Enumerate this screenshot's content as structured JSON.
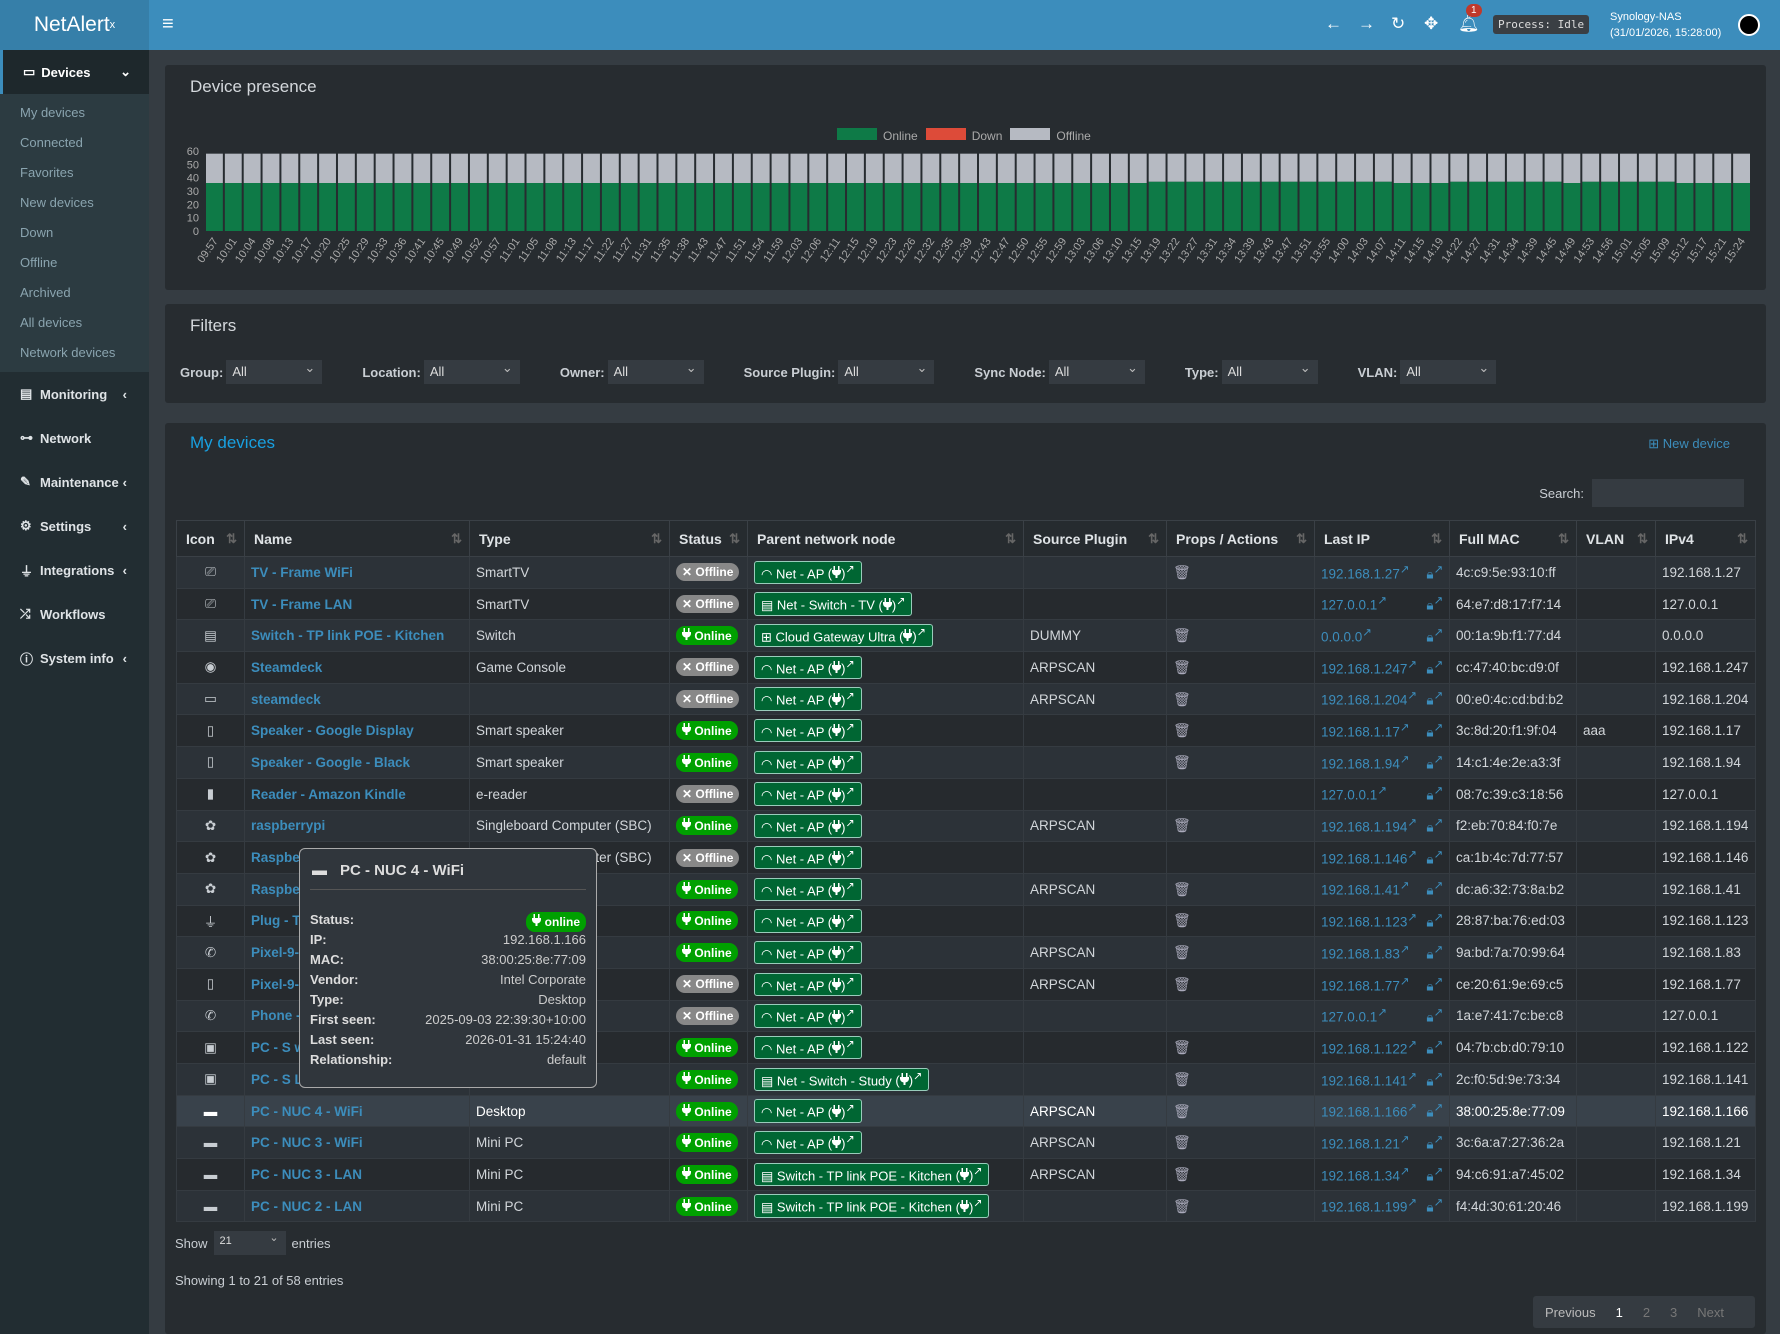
{
  "header": {
    "logo": "NetAlert",
    "logo_sup": "x",
    "notif_count": "1",
    "process": "Process: Idle",
    "host": "Synology-NAS",
    "datetime": "(31/01/2026, 15:28:00)"
  },
  "sidebar": {
    "devices": "Devices",
    "sub": [
      "My devices",
      "Connected",
      "Favorites",
      "New devices",
      "Down",
      "Offline",
      "Archived",
      "All devices",
      "Network devices"
    ],
    "items": [
      {
        "label": "Monitoring",
        "icon": "chart-icon",
        "chev": true
      },
      {
        "label": "Network",
        "icon": "sitemap-icon",
        "chev": false
      },
      {
        "label": "Maintenance",
        "icon": "wrench-icon",
        "chev": true
      },
      {
        "label": "Settings",
        "icon": "gear-icon",
        "chev": true
      },
      {
        "label": "Integrations",
        "icon": "plug-icon",
        "chev": true
      },
      {
        "label": "Workflows",
        "icon": "shuffle-icon",
        "chev": false
      },
      {
        "label": "System info",
        "icon": "info-icon",
        "chev": true
      }
    ]
  },
  "presence": {
    "title": "Device presence"
  },
  "chart_data": {
    "type": "bar",
    "stacked": true,
    "ylim": [
      0,
      60
    ],
    "yticks": [
      0,
      10,
      20,
      30,
      40,
      50,
      60
    ],
    "legend_position": "top-center",
    "x": [
      "09:57",
      "10:01",
      "10:04",
      "10:08",
      "10:13",
      "10:17",
      "10:20",
      "10:25",
      "10:29",
      "10:33",
      "10:36",
      "10:41",
      "10:45",
      "10:49",
      "10:52",
      "10:57",
      "11:01",
      "11:05",
      "11:08",
      "11:13",
      "11:17",
      "11:22",
      "11:27",
      "11:31",
      "11:35",
      "11:38",
      "11:43",
      "11:47",
      "11:51",
      "11:54",
      "11:59",
      "12:03",
      "12:06",
      "12:11",
      "12:15",
      "12:19",
      "12:23",
      "12:26",
      "12:32",
      "12:35",
      "12:39",
      "12:43",
      "12:47",
      "12:50",
      "12:55",
      "12:59",
      "13:03",
      "13:06",
      "13:10",
      "13:15",
      "13:19",
      "13:22",
      "13:27",
      "13:31",
      "13:34",
      "13:39",
      "13:43",
      "13:47",
      "13:51",
      "13:55",
      "14:00",
      "14:03",
      "14:07",
      "14:11",
      "14:15",
      "14:19",
      "14:22",
      "14:27",
      "14:31",
      "14:34",
      "14:39",
      "14:45",
      "14:49",
      "14:53",
      "14:56",
      "15:01",
      "15:05",
      "15:09",
      "15:12",
      "15:17",
      "15:21",
      "15:24"
    ],
    "series": [
      {
        "name": "Online",
        "color": "#0e7a47",
        "values": [
          36,
          36,
          36,
          36,
          36,
          36,
          36,
          36,
          36,
          36,
          36,
          36,
          36,
          36,
          36,
          36,
          36,
          36,
          36,
          36,
          36,
          36,
          36,
          36,
          36,
          36,
          36,
          36,
          36,
          36,
          36,
          36,
          36,
          36,
          36,
          36,
          36,
          36,
          36,
          36,
          36,
          36,
          36,
          36,
          36,
          36,
          36,
          36,
          36,
          36,
          37,
          37,
          37,
          37,
          37,
          37,
          37,
          37,
          37,
          37,
          37,
          37,
          37,
          36,
          36,
          36,
          37,
          37,
          37,
          37,
          37,
          37,
          36,
          37,
          37,
          37,
          37,
          37,
          36,
          36,
          36,
          36
        ]
      },
      {
        "name": "Down",
        "color": "#dd4b39",
        "values": [
          0,
          0,
          0,
          0,
          0,
          0,
          0,
          0,
          0,
          0,
          0,
          0,
          0,
          0,
          0,
          0,
          0,
          0,
          0,
          0,
          0,
          0,
          0,
          0,
          0,
          0,
          0,
          0,
          0,
          0,
          0,
          0,
          0,
          0,
          0,
          0,
          0,
          0,
          0,
          0,
          0,
          0,
          0,
          0,
          0,
          0,
          0,
          0,
          0,
          0,
          0,
          0,
          0,
          0,
          0,
          0,
          0,
          0,
          0,
          0,
          0,
          0,
          0,
          0,
          0,
          0,
          0,
          0,
          0,
          0,
          0,
          0,
          0,
          0,
          0,
          0,
          0,
          0,
          0,
          0,
          0,
          0
        ]
      },
      {
        "name": "Offline",
        "color": "#b6bac2",
        "values": [
          22,
          22,
          22,
          22,
          22,
          22,
          22,
          22,
          22,
          22,
          22,
          22,
          22,
          22,
          22,
          22,
          22,
          22,
          22,
          22,
          22,
          22,
          22,
          22,
          22,
          22,
          22,
          22,
          22,
          22,
          22,
          22,
          22,
          22,
          22,
          22,
          22,
          22,
          22,
          22,
          22,
          22,
          22,
          22,
          22,
          22,
          22,
          22,
          22,
          22,
          21,
          21,
          21,
          21,
          21,
          21,
          21,
          21,
          21,
          21,
          21,
          21,
          21,
          22,
          22,
          22,
          21,
          21,
          21,
          21,
          21,
          21,
          22,
          21,
          21,
          21,
          21,
          21,
          22,
          22,
          22,
          22
        ]
      }
    ]
  },
  "filters": {
    "title": "Filters",
    "items": [
      {
        "label": "Group:",
        "value": "All"
      },
      {
        "label": "Location:",
        "value": "All"
      },
      {
        "label": "Owner:",
        "value": "All"
      },
      {
        "label": "Source Plugin:",
        "value": "All"
      },
      {
        "label": "Sync Node:",
        "value": "All"
      },
      {
        "label": "Type:",
        "value": "All"
      },
      {
        "label": "VLAN:",
        "value": "All"
      }
    ]
  },
  "devices": {
    "title": "My devices",
    "new_device": "New device",
    "search_label": "Search:",
    "search_value": "",
    "columns": [
      "Icon",
      "Name",
      "Type",
      "Status",
      "Parent network node",
      "Source Plugin",
      "Props / Actions",
      "Last IP",
      "Full MAC",
      "VLAN",
      "IPv4"
    ],
    "rows": [
      {
        "icon": "tv",
        "name": "TV - Frame WiFi",
        "type": "SmartTV",
        "status": "Offline",
        "parent_icon": "wifi",
        "parent": "Net - AP",
        "plugin": "",
        "del": true,
        "ip": "192.168.1.27",
        "mac": "4c:c9:5e:93:10:ff",
        "vlan": "",
        "ipv4": "192.168.1.27"
      },
      {
        "icon": "tv",
        "name": "TV - Frame LAN",
        "type": "SmartTV",
        "status": "Offline",
        "parent_icon": "switch",
        "parent": "Net - Switch - TV",
        "plugin": "",
        "del": false,
        "ip": "127.0.0.1",
        "mac": "64:e7:d8:17:f7:14",
        "vlan": "",
        "ipv4": "127.0.0.1"
      },
      {
        "icon": "switch",
        "name": "Switch - TP link POE - Kitchen",
        "type": "Switch",
        "status": "Online",
        "parent_icon": "sitemap",
        "parent": "Cloud Gateway Ultra",
        "plugin": "DUMMY",
        "del": true,
        "ip": "0.0.0.0",
        "mac": "00:1a:9b:f1:77:d4",
        "vlan": "",
        "ipv4": "0.0.0.0"
      },
      {
        "icon": "gamepad",
        "name": "Steamdeck",
        "type": "Game Console",
        "status": "Offline",
        "parent_icon": "wifi",
        "parent": "Net - AP",
        "plugin": "ARPSCAN",
        "del": true,
        "ip": "192.168.1.247",
        "mac": "cc:47:40:bc:d9:0f",
        "vlan": "",
        "ipv4": "192.168.1.247"
      },
      {
        "icon": "laptop",
        "name": "steamdeck",
        "type": "",
        "status": "Offline",
        "parent_icon": "wifi",
        "parent": "Net - AP",
        "plugin": "ARPSCAN",
        "del": true,
        "ip": "192.168.1.204",
        "mac": "00:e0:4c:cd:bd:b2",
        "vlan": "",
        "ipv4": "192.168.1.204"
      },
      {
        "icon": "speaker",
        "name": "Speaker - Google Display",
        "type": "Smart speaker",
        "status": "Online",
        "parent_icon": "wifi",
        "parent": "Net - AP",
        "plugin": "",
        "del": true,
        "ip": "192.168.1.17",
        "mac": "3c:8d:20:f1:9f:04",
        "vlan": "aaa",
        "ipv4": "192.168.1.17"
      },
      {
        "icon": "speaker",
        "name": "Speaker - Google - Black",
        "type": "Smart speaker",
        "status": "Online",
        "parent_icon": "wifi",
        "parent": "Net - AP",
        "plugin": "",
        "del": true,
        "ip": "192.168.1.94",
        "mac": "14:c1:4e:2e:a3:3f",
        "vlan": "",
        "ipv4": "192.168.1.94"
      },
      {
        "icon": "ereader",
        "name": "Reader - Amazon Kindle",
        "type": "e-reader",
        "status": "Offline",
        "parent_icon": "wifi",
        "parent": "Net - AP",
        "plugin": "",
        "del": false,
        "ip": "127.0.0.1",
        "mac": "08:7c:39:c3:18:56",
        "vlan": "",
        "ipv4": "127.0.0.1"
      },
      {
        "icon": "raspberry",
        "name": "raspberrypi",
        "type": "Singleboard Computer (SBC)",
        "status": "Online",
        "parent_icon": "wifi",
        "parent": "Net - AP",
        "plugin": "ARPSCAN",
        "del": true,
        "ip": "192.168.1.194",
        "mac": "f2:eb:70:84:f0:7e",
        "vlan": "",
        "ipv4": "192.168.1.194"
      },
      {
        "icon": "raspberry",
        "name": "Raspber",
        "type": "Singleboard Computer (SBC)",
        "status": "Offline",
        "parent_icon": "wifi",
        "parent": "Net - AP",
        "plugin": "",
        "del": false,
        "ip": "192.168.1.146",
        "mac": "ca:1b:4c:7d:77:57",
        "vlan": "",
        "ipv4": "192.168.1.146"
      },
      {
        "icon": "raspberry",
        "name": "Raspber",
        "type": "",
        "status": "Online",
        "parent_icon": "wifi",
        "parent": "Net - AP",
        "plugin": "ARPSCAN",
        "del": true,
        "ip": "192.168.1.41",
        "mac": "dc:a6:32:73:8a:b2",
        "vlan": "",
        "ipv4": "192.168.1.41"
      },
      {
        "icon": "plug",
        "name": "Plug - T",
        "type": "",
        "status": "Online",
        "parent_icon": "wifi",
        "parent": "Net - AP",
        "plugin": "",
        "del": true,
        "ip": "192.168.1.123",
        "mac": "28:87:ba:76:ed:03",
        "vlan": "",
        "ipv4": "192.168.1.123"
      },
      {
        "icon": "phone",
        "name": "Pixel-9-",
        "type": "",
        "status": "Online",
        "parent_icon": "wifi",
        "parent": "Net - AP",
        "plugin": "ARPSCAN",
        "del": true,
        "ip": "192.168.1.83",
        "mac": "9a:bd:7a:70:99:64",
        "vlan": "",
        "ipv4": "192.168.1.83"
      },
      {
        "icon": "mobile",
        "name": "Pixel-9-",
        "type": "",
        "status": "Offline",
        "parent_icon": "wifi",
        "parent": "Net - AP",
        "plugin": "ARPSCAN",
        "del": true,
        "ip": "192.168.1.77",
        "mac": "ce:20:61:9e:69:c5",
        "vlan": "",
        "ipv4": "192.168.1.77"
      },
      {
        "icon": "phone",
        "name": "Phone -",
        "type": "",
        "status": "Offline",
        "parent_icon": "wifi",
        "parent": "Net - AP",
        "plugin": "",
        "del": false,
        "ip": "127.0.0.1",
        "mac": "1a:e7:41:7c:be:c8",
        "vlan": "",
        "ipv4": "127.0.0.1"
      },
      {
        "icon": "desktop",
        "name": "PC - S w",
        "type": "",
        "status": "Online",
        "parent_icon": "wifi",
        "parent": "Net - AP",
        "plugin": "",
        "del": true,
        "ip": "192.168.1.122",
        "mac": "04:7b:cb:d0:79:10",
        "vlan": "",
        "ipv4": "192.168.1.122"
      },
      {
        "icon": "desktop-tower",
        "name": "PC - S L",
        "type": "",
        "status": "Online",
        "parent_icon": "switch",
        "parent": "Net - Switch - Study",
        "plugin": "",
        "del": true,
        "ip": "192.168.1.141",
        "mac": "2c:f0:5d:9e:73:34",
        "vlan": "",
        "ipv4": "192.168.1.141"
      },
      {
        "icon": "minipc",
        "name": "PC - NUC 4 - WiFi",
        "type": "Desktop",
        "status": "Online",
        "parent_icon": "wifi",
        "parent": "Net - AP",
        "plugin": "ARPSCAN",
        "del": true,
        "ip": "192.168.1.166",
        "mac": "38:00:25:8e:77:09",
        "vlan": "",
        "ipv4": "192.168.1.166",
        "highlight": true
      },
      {
        "icon": "minipc",
        "name": "PC - NUC 3 - WiFi",
        "type": "Mini PC",
        "status": "Online",
        "parent_icon": "wifi",
        "parent": "Net - AP",
        "plugin": "ARPSCAN",
        "del": true,
        "ip": "192.168.1.21",
        "mac": "3c:6a:a7:27:36:2a",
        "vlan": "",
        "ipv4": "192.168.1.21"
      },
      {
        "icon": "minipc",
        "name": "PC - NUC 3 - LAN",
        "type": "Mini PC",
        "status": "Online",
        "parent_icon": "switch",
        "parent": "Switch - TP link POE - Kitchen",
        "plugin": "ARPSCAN",
        "del": true,
        "ip": "192.168.1.34",
        "mac": "94:c6:91:a7:45:02",
        "vlan": "",
        "ipv4": "192.168.1.34"
      },
      {
        "icon": "minipc",
        "name": "PC - NUC 2 - LAN",
        "type": "Mini PC",
        "status": "Online",
        "parent_icon": "switch",
        "parent": "Switch - TP link POE - Kitchen",
        "plugin": "",
        "del": true,
        "ip": "192.168.1.199",
        "mac": "f4:4d:30:61:20:46",
        "vlan": "",
        "ipv4": "192.168.1.199"
      }
    ],
    "show_label": "Show",
    "entries_value": "21",
    "entries_label": "entries",
    "showing": "Showing 1 to 21 of 58 entries",
    "pagination": {
      "previous": "Previous",
      "pages": [
        "1",
        "2",
        "3"
      ],
      "current": "1",
      "next": "Next"
    }
  },
  "tooltip": {
    "title": "PC - NUC 4 - WiFi",
    "status": "online",
    "rows": [
      {
        "k": "Status:"
      },
      {
        "k": "IP:",
        "v": "192.168.1.166"
      },
      {
        "k": "MAC:",
        "v": "38:00:25:8e:77:09"
      },
      {
        "k": "Vendor:",
        "v": "Intel Corporate"
      },
      {
        "k": "Type:",
        "v": "Desktop"
      },
      {
        "k": "First seen:",
        "v": "2025-09-03 22:39:30+10:00"
      },
      {
        "k": "Last seen:",
        "v": "2026-01-31 15:24:40"
      },
      {
        "k": "Relationship:",
        "v": "default"
      }
    ]
  }
}
